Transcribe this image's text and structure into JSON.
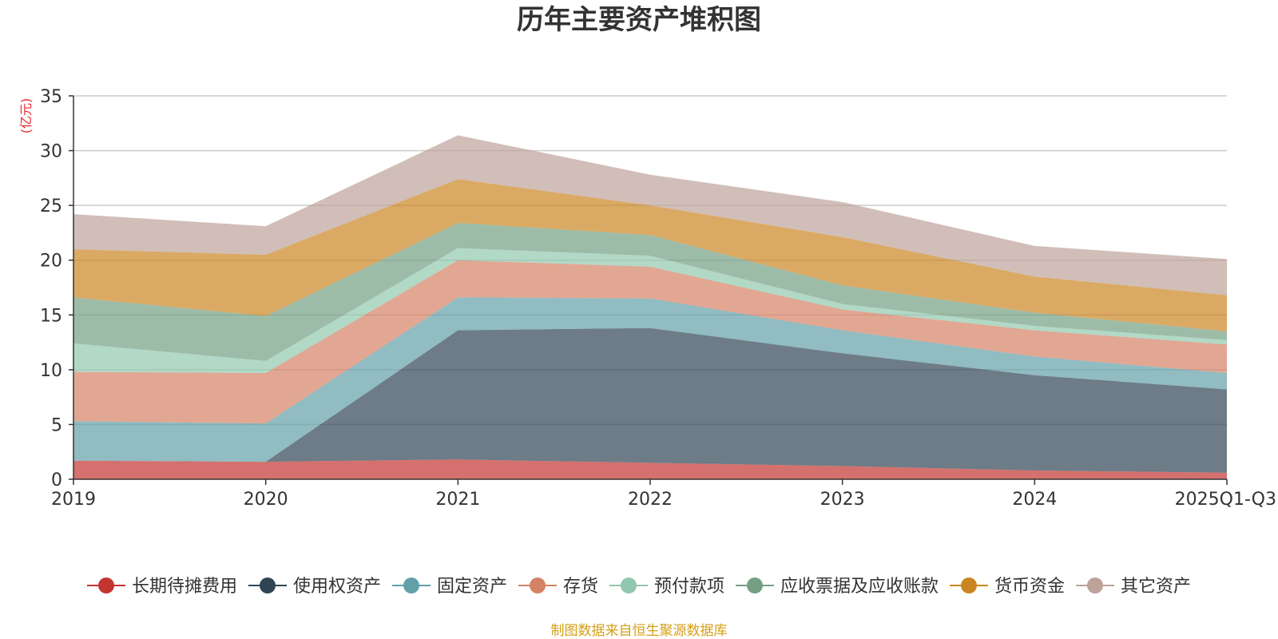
{
  "chart_data": {
    "type": "area",
    "stacked": true,
    "title": "历年主要资产堆积图",
    "ylabel": "(亿元)",
    "xlabel": "",
    "ylim": [
      0,
      35
    ],
    "yticks": [
      "0",
      "5",
      "10",
      "15",
      "20",
      "25",
      "30",
      "35"
    ],
    "categories": [
      "2019",
      "2020",
      "2021",
      "2022",
      "2023",
      "2024",
      "2025Q1-Q3"
    ],
    "grid": true,
    "legend_position": "bottom",
    "series": [
      {
        "name": "长期待摊费用",
        "color": "#c23531",
        "values": [
          1.7,
          1.6,
          1.8,
          1.5,
          1.2,
          0.8,
          0.6
        ]
      },
      {
        "name": "使用权资产",
        "color": "#2f4554",
        "values": [
          0.0,
          0.0,
          11.8,
          12.3,
          10.3,
          8.7,
          7.6
        ]
      },
      {
        "name": "固定资产",
        "color": "#61a0a8",
        "values": [
          3.6,
          3.5,
          3.0,
          2.7,
          2.1,
          1.7,
          1.5
        ]
      },
      {
        "name": "存货",
        "color": "#d48265",
        "values": [
          4.5,
          4.6,
          3.4,
          2.9,
          1.9,
          2.4,
          2.6
        ]
      },
      {
        "name": "预付款项",
        "color": "#91c7ae",
        "values": [
          2.6,
          1.1,
          1.1,
          1.0,
          0.5,
          0.4,
          0.4
        ]
      },
      {
        "name": "应收票据及应收账款",
        "color": "#749f83",
        "values": [
          4.2,
          4.1,
          2.3,
          1.9,
          1.7,
          1.2,
          0.8
        ]
      },
      {
        "name": "货币资金",
        "color": "#ca8622",
        "values": [
          4.4,
          5.6,
          4.0,
          2.7,
          4.4,
          3.3,
          3.3
        ]
      },
      {
        "name": "其它资产",
        "color": "#bda29a",
        "values": [
          3.2,
          2.6,
          4.0,
          2.8,
          3.2,
          2.8,
          3.3
        ]
      }
    ],
    "source": "制图数据来自恒生聚源数据库"
  }
}
